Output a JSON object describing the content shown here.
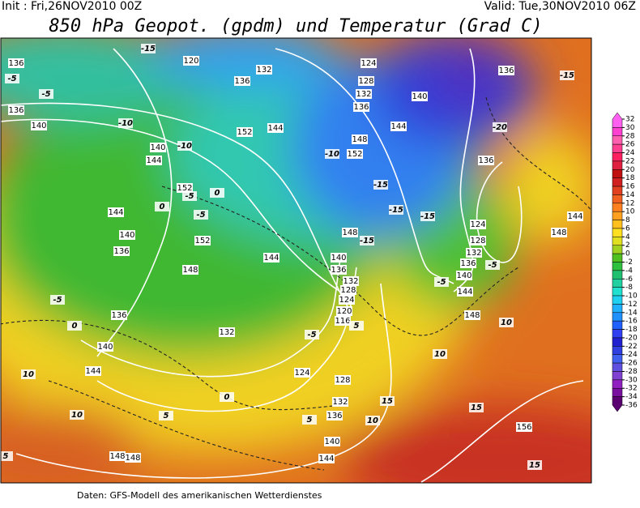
{
  "header": {
    "init": "Init : Fri,26NOV2010 00Z",
    "valid": "Valid: Tue,30NOV2010 06Z",
    "title": "850 hPa Geopot. (gpdm) und Temperatur (Grad C)"
  },
  "map": {
    "geopotential_labels": [
      136,
      136,
      140,
      144,
      140,
      152,
      152,
      148,
      144,
      144,
      140,
      136,
      136,
      140,
      144,
      132,
      124,
      128,
      132,
      136,
      140,
      144,
      148,
      148,
      156,
      144,
      148,
      140,
      136,
      132,
      128,
      124,
      136,
      136,
      124,
      128,
      132,
      136,
      140,
      144,
      148,
      152,
      148,
      140,
      136,
      132,
      128,
      124,
      120,
      116,
      144,
      148,
      120,
      136,
      132,
      144,
      152
    ],
    "temperature_labels": [
      -15,
      -5,
      -5,
      -10,
      -10,
      -5,
      0,
      -5,
      0,
      -5,
      0,
      10,
      10,
      5,
      0,
      5,
      -10,
      -15,
      -15,
      -15,
      -15,
      -20,
      -15,
      -5,
      -5,
      -5,
      5,
      10,
      15,
      15,
      15,
      10,
      10,
      5
    ]
  },
  "colorbar": {
    "ticks": [
      32,
      30,
      28,
      26,
      24,
      22,
      20,
      18,
      16,
      14,
      12,
      10,
      8,
      6,
      4,
      2,
      0,
      -2,
      -4,
      -6,
      -8,
      -10,
      -12,
      -14,
      -16,
      -18,
      -20,
      -22,
      -24,
      -26,
      -28,
      -30,
      -32,
      -34,
      -36
    ],
    "colors": [
      "#ff60f0",
      "#ff40d0",
      "#ff60b0",
      "#ff4090",
      "#ff2060",
      "#e02040",
      "#c01010",
      "#d02020",
      "#e04020",
      "#f06020",
      "#ff8020",
      "#ffa020",
      "#ffc020",
      "#ffe020",
      "#e0e020",
      "#a0d020",
      "#50c020",
      "#30c040",
      "#20c070",
      "#20d0a0",
      "#20e0d0",
      "#20d0f0",
      "#20b0ff",
      "#2090ff",
      "#2060ff",
      "#3040f0",
      "#2020d0",
      "#3040e0",
      "#4060f0",
      "#6050e0",
      "#8040d0",
      "#9020c0",
      "#7a10a0",
      "#5a0070"
    ]
  },
  "footer": "Daten: GFS-Modell des amerikanischen Wetterdienstes"
}
